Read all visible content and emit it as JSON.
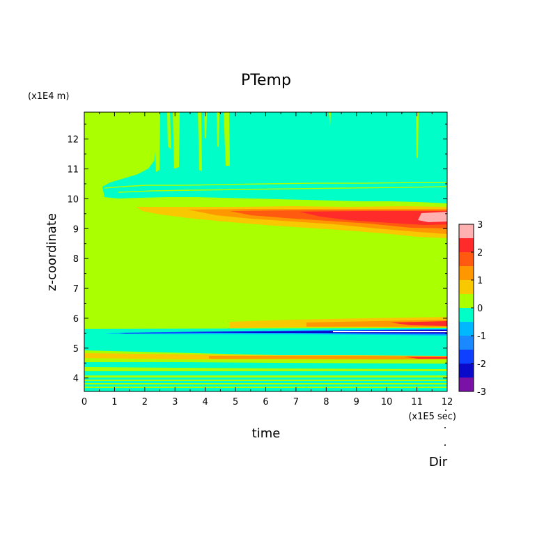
{
  "chart_data": {
    "type": "heatmap",
    "title": "PTemp",
    "xlabel": "time",
    "ylabel": "z-coordinate",
    "x_unit": "(x1E5 sec)",
    "y_unit": "(x1E4 m)",
    "footer_label": "Dir",
    "xlim": [
      0,
      12
    ],
    "ylim": [
      3.55,
      12.9
    ],
    "x_ticks": [
      "0",
      "1",
      "2",
      "3",
      "4",
      "5",
      "6",
      "7",
      "8",
      "9",
      "10",
      "11",
      "12"
    ],
    "y_ticks": [
      "4",
      "5",
      "6",
      "7",
      "8",
      "9",
      "10",
      "11",
      "12"
    ],
    "colorbar": {
      "levels": [
        -3,
        -2.5,
        -2,
        -1.5,
        -1,
        -0.5,
        0,
        0.5,
        1,
        1.5,
        2,
        2.5,
        3
      ],
      "tick_labels": [
        "-3",
        "-2",
        "-1",
        "0",
        "1",
        "2",
        "3"
      ],
      "colors": [
        "#7a12a8",
        "#0a0ac8",
        "#1040ff",
        "#1a88ff",
        "#00b8ff",
        "#00ffc8",
        "#aaff00",
        "#f8c800",
        "#ff9800",
        "#ff5a10",
        "#ff2a2a",
        "#ffb0b0"
      ]
    },
    "regions": [
      {
        "value": 0.25,
        "y_range": [
          5.65,
          10.2
        ],
        "x_range": [
          0,
          12
        ]
      },
      {
        "value": -0.25,
        "y_range": [
          10.1,
          12.9
        ],
        "x_range": [
          0.6,
          12
        ]
      },
      {
        "value": 2.5,
        "y_range": [
          9.2,
          9.6
        ],
        "x_range": [
          6.5,
          12
        ]
      },
      {
        "value": -1.5,
        "y_range": [
          5.5,
          5.65
        ],
        "x_range": [
          0.8,
          12
        ]
      },
      {
        "value": -2.5,
        "y_range": [
          5.55,
          5.65
        ],
        "x_range": [
          4,
          12
        ]
      },
      {
        "value": -0.25,
        "y_range": [
          4.8,
          5.65
        ],
        "x_range": [
          0,
          12
        ]
      },
      {
        "value": 1.25,
        "y_range": [
          5.75,
          6.0
        ],
        "x_range": [
          5,
          12
        ]
      },
      {
        "value": 1.75,
        "y_range": [
          4.6,
          4.75
        ],
        "x_range": [
          6,
          12
        ]
      }
    ]
  }
}
